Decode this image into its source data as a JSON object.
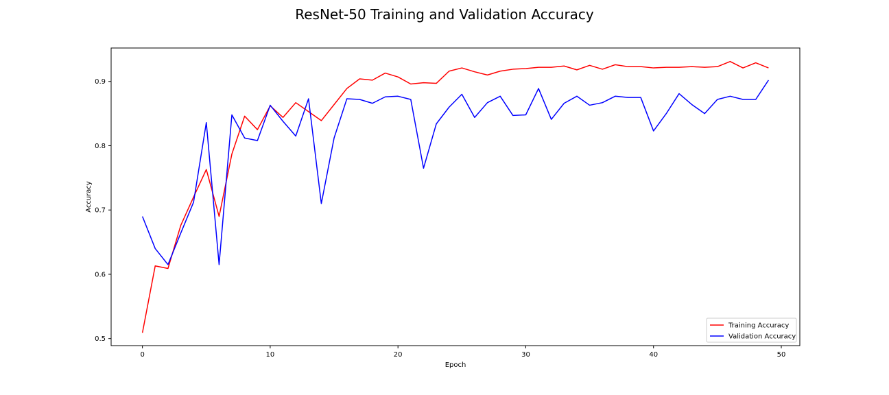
{
  "chart_data": {
    "type": "line",
    "title": "ResNet-50 Training and Validation Accuracy",
    "xlabel": "Epoch",
    "ylabel": "Accuracy",
    "xlim": [
      -2.45,
      51.45
    ],
    "ylim": [
      0.489,
      0.952
    ],
    "xticks": [
      0,
      10,
      20,
      30,
      40,
      50
    ],
    "yticks": [
      0.5,
      0.6,
      0.7,
      0.8,
      0.9
    ],
    "legend_position": "lower-right",
    "grid": false,
    "x": [
      0,
      1,
      2,
      3,
      4,
      5,
      6,
      7,
      8,
      9,
      10,
      11,
      12,
      13,
      14,
      15,
      16,
      17,
      18,
      19,
      20,
      21,
      22,
      23,
      24,
      25,
      26,
      27,
      28,
      29,
      30,
      31,
      32,
      33,
      34,
      35,
      36,
      37,
      38,
      39,
      40,
      41,
      42,
      43,
      44,
      45,
      46,
      47,
      48,
      49
    ],
    "series": [
      {
        "name": "Training Accuracy",
        "color": "#ff0000",
        "values": [
          0.509,
          0.613,
          0.609,
          0.676,
          0.72,
          0.763,
          0.69,
          0.787,
          0.846,
          0.825,
          0.862,
          0.844,
          0.867,
          0.853,
          0.839,
          0.864,
          0.889,
          0.904,
          0.902,
          0.913,
          0.907,
          0.896,
          0.898,
          0.897,
          0.916,
          0.921,
          0.915,
          0.91,
          0.916,
          0.919,
          0.92,
          0.922,
          0.922,
          0.924,
          0.918,
          0.925,
          0.919,
          0.926,
          0.923,
          0.923,
          0.921,
          0.922,
          0.922,
          0.923,
          0.922,
          0.923,
          0.931,
          0.921,
          0.929,
          0.921
        ]
      },
      {
        "name": "Validation Accuracy",
        "color": "#0000ff",
        "values": [
          0.69,
          0.64,
          0.615,
          0.664,
          0.712,
          0.836,
          0.615,
          0.848,
          0.812,
          0.808,
          0.863,
          0.838,
          0.815,
          0.873,
          0.71,
          0.812,
          0.873,
          0.872,
          0.866,
          0.876,
          0.877,
          0.872,
          0.765,
          0.834,
          0.86,
          0.88,
          0.844,
          0.867,
          0.877,
          0.847,
          0.848,
          0.889,
          0.841,
          0.866,
          0.877,
          0.863,
          0.867,
          0.877,
          0.875,
          0.875,
          0.823,
          0.85,
          0.881,
          0.864,
          0.85,
          0.872,
          0.877,
          0.872,
          0.872,
          0.902
        ]
      }
    ]
  }
}
